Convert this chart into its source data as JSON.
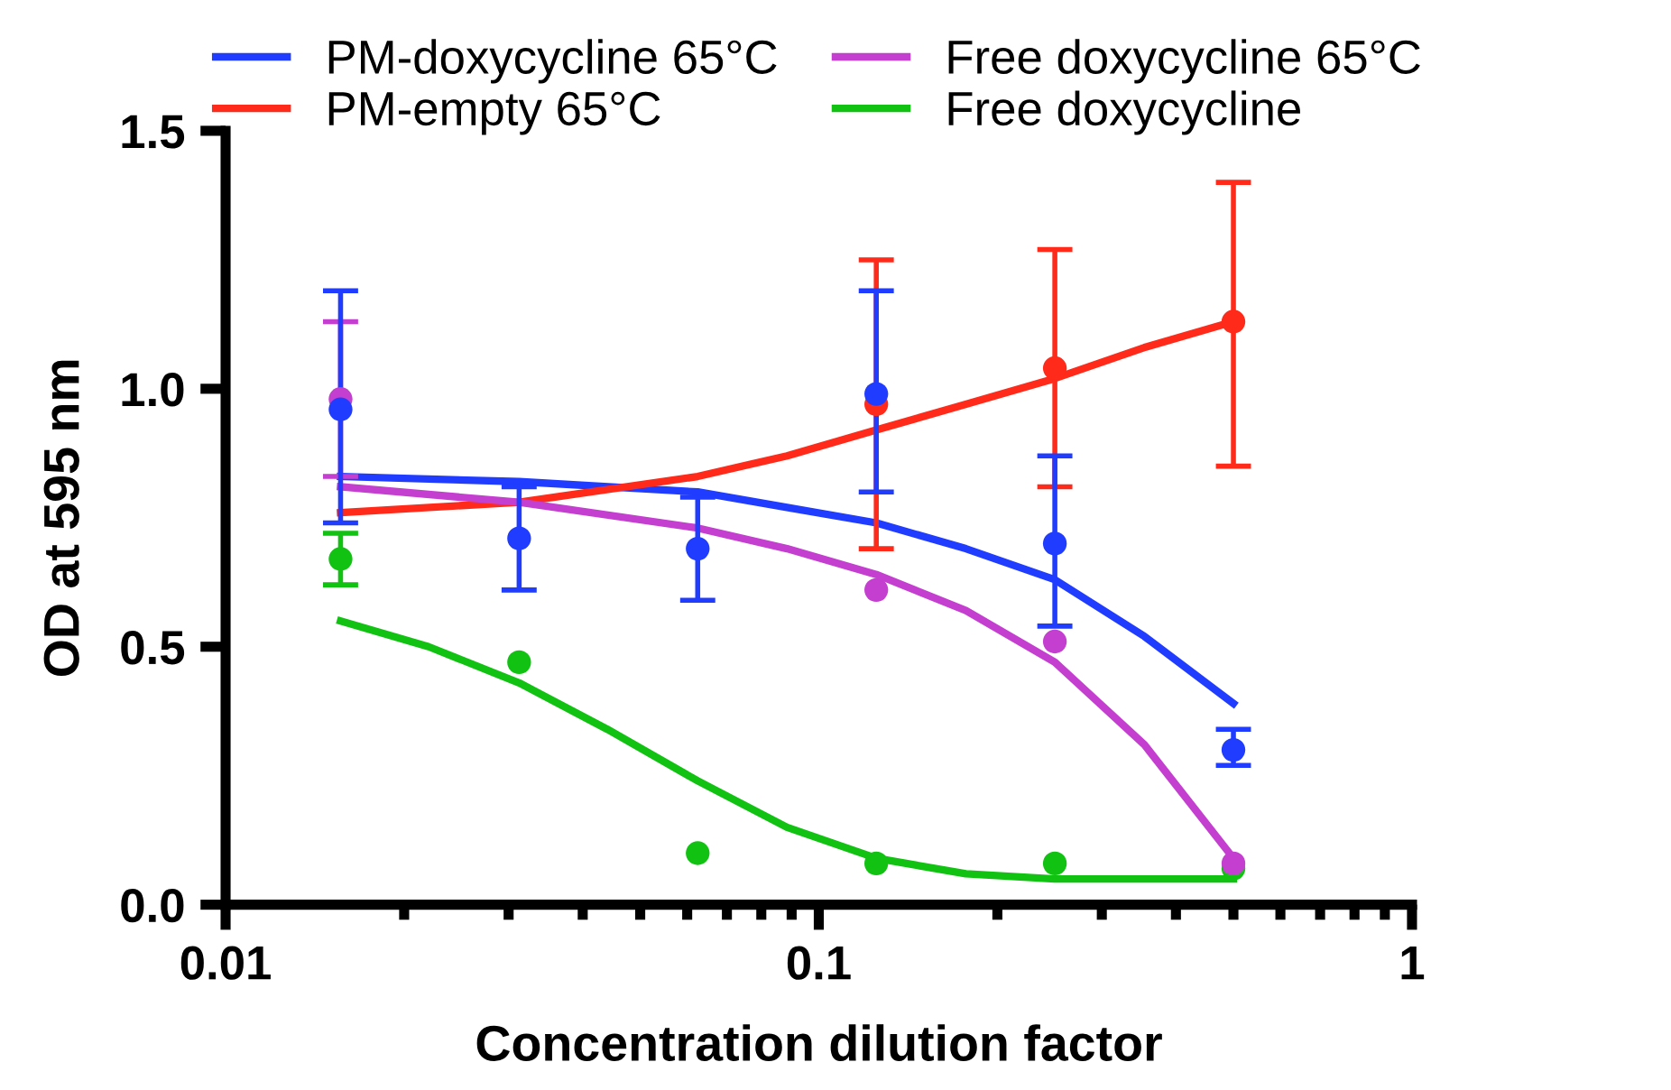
{
  "chart_data": {
    "type": "scatter",
    "xlabel": "Concentration dilution factor",
    "ylabel": "OD at 595 nm",
    "log": "x",
    "xlim": [
      0.01,
      1
    ],
    "xticks": [
      0.01,
      0.1,
      1
    ],
    "ylim": [
      0,
      1.5
    ],
    "yticks": [
      {
        "value": 0,
        "label": "0.0"
      },
      {
        "value": 0.5,
        "label": "0.5"
      },
      {
        "value": 1,
        "label": "1.0"
      },
      {
        "value": 1.5,
        "label": "1.5"
      }
    ],
    "grid": false,
    "legend": "top",
    "marker": "circle",
    "x": [
      0.015625,
      0.03125,
      0.0625,
      0.125,
      0.25,
      0.5
    ],
    "series": [
      {
        "name": "PM-doxycycline 65°C",
        "type": "line",
        "marker": "none",
        "color": "#1f3cff",
        "x": [
          0.015625,
          0.03125,
          0.0625,
          0.0884,
          0.125,
          0.177,
          0.25,
          0.354,
          0.5
        ],
        "values": [
          0.83,
          0.82,
          0.8,
          0.77,
          0.74,
          0.69,
          0.63,
          0.52,
          0.39
        ]
      },
      {
        "name": "PM-empty 65°C",
        "type": "line",
        "marker": "none",
        "color": "#ff2a1a",
        "x": [
          0.015625,
          0.03125,
          0.0625,
          0.0884,
          0.125,
          0.177,
          0.25,
          0.354,
          0.5
        ],
        "values": [
          0.76,
          0.78,
          0.83,
          0.87,
          0.92,
          0.97,
          1.02,
          1.08,
          1.13
        ]
      },
      {
        "name": "Free doxycycline 65°C",
        "type": "line",
        "marker": "none",
        "color": "#c43fd0",
        "x": [
          0.015625,
          0.03125,
          0.0625,
          0.0884,
          0.125,
          0.177,
          0.25,
          0.354,
          0.5
        ],
        "values": [
          0.81,
          0.78,
          0.73,
          0.69,
          0.64,
          0.57,
          0.47,
          0.31,
          0.09
        ]
      },
      {
        "name": "Free doxycycline",
        "type": "line",
        "marker": "none",
        "color": "#12c212",
        "x": [
          0.015625,
          0.022,
          0.03125,
          0.044,
          0.0625,
          0.0884,
          0.125,
          0.177,
          0.25,
          0.5
        ],
        "values": [
          0.55,
          0.5,
          0.43,
          0.34,
          0.24,
          0.15,
          0.09,
          0.06,
          0.05,
          0.05
        ]
      },
      {
        "color": "#ff2a1a",
        "values": [
          null,
          null,
          null,
          0.97,
          1.04,
          1.13
        ],
        "errors": [
          null,
          null,
          null,
          [
            0.69,
            1.25
          ],
          [
            0.81,
            1.27
          ],
          [
            0.85,
            1.4
          ]
        ]
      },
      {
        "color": "#12c212",
        "values": [
          0.67,
          0.47,
          0.1,
          0.08,
          0.08,
          0.07
        ],
        "errors": [
          [
            0.62,
            0.72
          ],
          null,
          null,
          null,
          null,
          null
        ]
      },
      {
        "color": "#c43fd0",
        "values": [
          0.98,
          null,
          null,
          0.61,
          0.51,
          0.08
        ],
        "errors": [
          [
            0.83,
            1.13
          ],
          null,
          null,
          null,
          null,
          null
        ]
      },
      {
        "color": "#1f3cff",
        "values": [
          0.96,
          0.71,
          0.69,
          0.99,
          0.7,
          0.3
        ],
        "errors": [
          [
            0.74,
            1.19
          ],
          [
            0.61,
            0.81
          ],
          [
            0.59,
            0.79
          ],
          [
            0.8,
            1.19
          ],
          [
            0.54,
            0.87
          ],
          [
            0.27,
            0.34
          ]
        ]
      }
    ]
  }
}
